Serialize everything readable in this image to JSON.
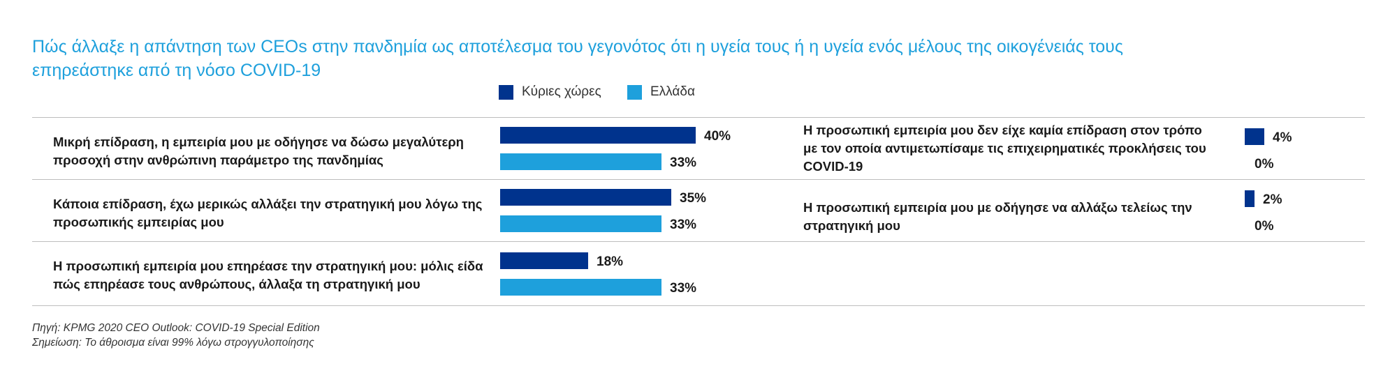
{
  "colors": {
    "primary": "#00338d",
    "secondary": "#1ea0dc"
  },
  "chart_data": {
    "type": "bar",
    "orientation": "horizontal",
    "title": "Πώς άλλαξε η απάντηση των CEOs στην πανδημία ως αποτέλεσμα του γεγονότος ότι η υγεία τους ή η υγεία ενός μέλους της οικογένειάς τους επηρεάστηκε από τη νόσο COVID-19",
    "legend_position": "top",
    "unit": "%",
    "series": [
      {
        "name": "Κύριες χώρες",
        "color": "#00338d",
        "values": [
          40,
          35,
          18,
          4,
          2
        ]
      },
      {
        "name": "Ελλάδα",
        "color": "#1ea0dc",
        "values": [
          33,
          33,
          33,
          0,
          0
        ]
      }
    ],
    "value_labels": [
      [
        "40%",
        "35%",
        "18%",
        "4%",
        "2%"
      ],
      [
        "33%",
        "33%",
        "33%",
        "0%",
        "0%"
      ]
    ],
    "categories": [
      "Μικρή επίδραση, η εμπειρία μου με οδήγησε να δώσω μεγαλύτερη προσοχή στην ανθρώπινη παράμετρο της πανδημίας",
      "Κάποια επίδραση, έχω μερικώς αλλάξει την στρατηγική μου λόγω της προσωπικής εμπειρίας μου",
      "Η προσωπική εμπειρία μου επηρέασε την στρατηγική μου: μόλις είδα πώς επηρέασε τους ανθρώπους, άλλαξα τη στρατηγική μου",
      "Η προσωπική εμπειρία μου δεν είχε καμία επίδραση στον τρόπο με τον οποία αντιμετωπίσαμε τις επιχειρηματικές προκλήσεις του COVID-19",
      "Η προσωπική εμπειρία μου με οδήγησε να αλλάξω τελείως την στρατηγική μου"
    ],
    "source": "Πηγή: KPMG 2020 CEO Outlook: COVID-19 Special Edition",
    "note": "Σημείωση: Το άθροισμα είναι 99% λόγω στρογγυλοποίησης"
  }
}
